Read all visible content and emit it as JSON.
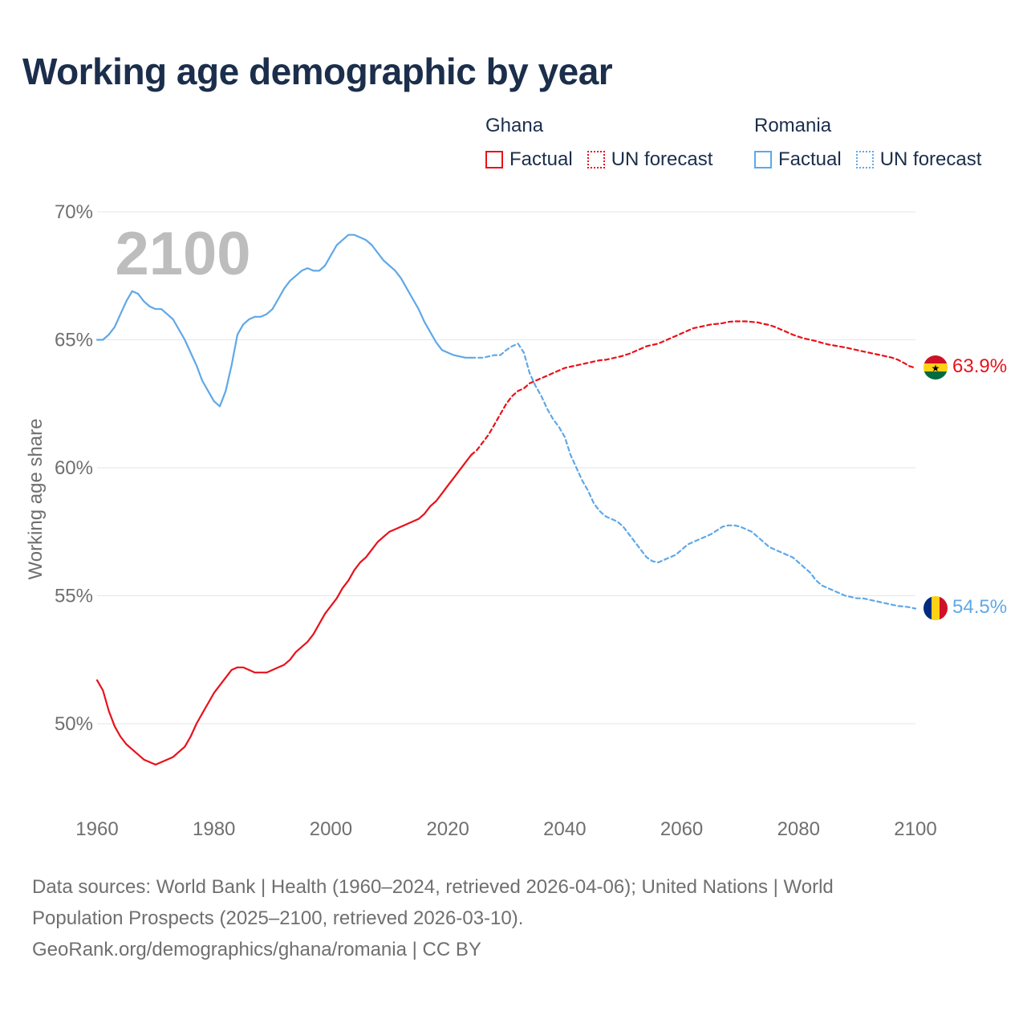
{
  "title": "Working age demographic by year",
  "legend": {
    "groups": [
      {
        "name": "Ghana",
        "factual_label": "Factual",
        "forecast_label": "UN forecast",
        "color": "#e8111a"
      },
      {
        "name": "Romania",
        "factual_label": "Factual",
        "forecast_label": "UN forecast",
        "color": "#5fa8e8"
      }
    ]
  },
  "footer": {
    "line1": "Data sources: World Bank | Health (1960–2024, retrieved 2026-04-06); United Nations | World",
    "line2": "Population Prospects (2025–2100, retrieved 2026-03-10).",
    "line3": "GeoRank.org/demographics/ghana/romania | CC BY"
  },
  "chart_data": {
    "type": "line",
    "title": "Working age demographic by year",
    "ylabel": "Working age share",
    "xlabel": "",
    "year_watermark": "2100",
    "xlim": [
      1960,
      2100
    ],
    "ylim": [
      46.5,
      70
    ],
    "x_ticks": [
      1960,
      1980,
      2000,
      2020,
      2040,
      2060,
      2080,
      2100
    ],
    "y_ticks": [
      50,
      55,
      60,
      65,
      70
    ],
    "y_tick_labels": [
      "50%",
      "55%",
      "60%",
      "65%",
      "70%"
    ],
    "grid": true,
    "series": [
      {
        "name": "Ghana",
        "color": "#e8111a",
        "end_label": "63.9%",
        "flag": "ghana",
        "factual": {
          "x": [
            1960,
            1961,
            1962,
            1963,
            1964,
            1965,
            1966,
            1967,
            1968,
            1969,
            1970,
            1971,
            1972,
            1973,
            1974,
            1975,
            1976,
            1977,
            1978,
            1979,
            1980,
            1981,
            1982,
            1983,
            1984,
            1985,
            1986,
            1987,
            1988,
            1989,
            1990,
            1991,
            1992,
            1993,
            1994,
            1995,
            1996,
            1997,
            1998,
            1999,
            2000,
            2001,
            2002,
            2003,
            2004,
            2005,
            2006,
            2007,
            2008,
            2009,
            2010,
            2011,
            2012,
            2013,
            2014,
            2015,
            2016,
            2017,
            2018,
            2019,
            2020,
            2021,
            2022,
            2023,
            2024
          ],
          "y": [
            51.7,
            51.3,
            50.5,
            49.9,
            49.5,
            49.2,
            49.0,
            48.8,
            48.6,
            48.5,
            48.4,
            48.5,
            48.6,
            48.7,
            48.9,
            49.1,
            49.5,
            50.0,
            50.4,
            50.8,
            51.2,
            51.5,
            51.8,
            52.1,
            52.2,
            52.2,
            52.1,
            52.0,
            52.0,
            52.0,
            52.1,
            52.2,
            52.3,
            52.5,
            52.8,
            53.0,
            53.2,
            53.5,
            53.9,
            54.3,
            54.6,
            54.9,
            55.3,
            55.6,
            56.0,
            56.3,
            56.5,
            56.8,
            57.1,
            57.3,
            57.5,
            57.6,
            57.7,
            57.8,
            57.9,
            58.0,
            58.2,
            58.5,
            58.7,
            59.0,
            59.3,
            59.6,
            59.9,
            60.2,
            60.5
          ]
        },
        "forecast": {
          "x": [
            2024,
            2025,
            2026,
            2027,
            2028,
            2029,
            2030,
            2031,
            2032,
            2033,
            2034,
            2035,
            2036,
            2037,
            2038,
            2039,
            2040,
            2041,
            2042,
            2043,
            2044,
            2045,
            2046,
            2047,
            2048,
            2049,
            2050,
            2051,
            2052,
            2053,
            2054,
            2055,
            2056,
            2057,
            2058,
            2059,
            2060,
            2061,
            2062,
            2063,
            2064,
            2065,
            2066,
            2067,
            2068,
            2069,
            2070,
            2071,
            2072,
            2073,
            2074,
            2075,
            2076,
            2077,
            2078,
            2079,
            2080,
            2081,
            2082,
            2083,
            2084,
            2085,
            2086,
            2087,
            2088,
            2089,
            2090,
            2091,
            2092,
            2093,
            2094,
            2095,
            2096,
            2097,
            2098,
            2099,
            2100
          ],
          "y": [
            60.5,
            60.7,
            61.0,
            61.3,
            61.7,
            62.1,
            62.5,
            62.8,
            63.0,
            63.1,
            63.3,
            63.4,
            63.5,
            63.6,
            63.7,
            63.8,
            63.9,
            63.95,
            64.0,
            64.05,
            64.1,
            64.15,
            64.2,
            64.22,
            64.27,
            64.32,
            64.38,
            64.45,
            64.55,
            64.65,
            64.75,
            64.8,
            64.85,
            64.95,
            65.05,
            65.15,
            65.25,
            65.35,
            65.45,
            65.5,
            65.55,
            65.6,
            65.62,
            65.65,
            65.7,
            65.72,
            65.72,
            65.72,
            65.7,
            65.68,
            65.62,
            65.58,
            65.5,
            65.4,
            65.3,
            65.2,
            65.12,
            65.05,
            65.0,
            64.95,
            64.88,
            64.82,
            64.78,
            64.74,
            64.7,
            64.65,
            64.6,
            64.55,
            64.5,
            64.45,
            64.4,
            64.35,
            64.3,
            64.22,
            64.1,
            63.97,
            63.9
          ]
        }
      },
      {
        "name": "Romania",
        "color": "#5fa8e8",
        "end_label": "54.5%",
        "flag": "romania",
        "factual": {
          "x": [
            1960,
            1961,
            1962,
            1963,
            1964,
            1965,
            1966,
            1967,
            1968,
            1969,
            1970,
            1971,
            1972,
            1973,
            1974,
            1975,
            1976,
            1977,
            1978,
            1979,
            1980,
            1981,
            1982,
            1983,
            1984,
            1985,
            1986,
            1987,
            1988,
            1989,
            1990,
            1991,
            1992,
            1993,
            1994,
            1995,
            1996,
            1997,
            1998,
            1999,
            2000,
            2001,
            2002,
            2003,
            2004,
            2005,
            2006,
            2007,
            2008,
            2009,
            2010,
            2011,
            2012,
            2013,
            2014,
            2015,
            2016,
            2017,
            2018,
            2019,
            2020,
            2021,
            2022,
            2023,
            2024
          ],
          "y": [
            65.0,
            65.0,
            65.2,
            65.5,
            66.0,
            66.5,
            66.9,
            66.8,
            66.5,
            66.3,
            66.2,
            66.2,
            66.0,
            65.8,
            65.4,
            65.0,
            64.5,
            64.0,
            63.4,
            63.0,
            62.6,
            62.4,
            63.0,
            64.0,
            65.2,
            65.6,
            65.8,
            65.9,
            65.9,
            66.0,
            66.2,
            66.6,
            67.0,
            67.3,
            67.5,
            67.7,
            67.8,
            67.7,
            67.7,
            67.9,
            68.3,
            68.7,
            68.9,
            69.1,
            69.1,
            69.0,
            68.9,
            68.7,
            68.4,
            68.1,
            67.9,
            67.7,
            67.4,
            67.0,
            66.6,
            66.2,
            65.7,
            65.3,
            64.9,
            64.6,
            64.5,
            64.4,
            64.35,
            64.3,
            64.3
          ]
        },
        "forecast": {
          "x": [
            2024,
            2025,
            2026,
            2027,
            2028,
            2029,
            2030,
            2031,
            2032,
            2033,
            2034,
            2035,
            2036,
            2037,
            2038,
            2039,
            2040,
            2041,
            2042,
            2043,
            2044,
            2045,
            2046,
            2047,
            2048,
            2049,
            2050,
            2051,
            2052,
            2053,
            2054,
            2055,
            2056,
            2057,
            2058,
            2059,
            2060,
            2061,
            2062,
            2063,
            2064,
            2065,
            2066,
            2067,
            2068,
            2069,
            2070,
            2071,
            2072,
            2073,
            2074,
            2075,
            2076,
            2077,
            2078,
            2079,
            2080,
            2081,
            2082,
            2083,
            2084,
            2085,
            2086,
            2087,
            2088,
            2089,
            2090,
            2091,
            2092,
            2093,
            2094,
            2095,
            2096,
            2097,
            2098,
            2099,
            2100
          ],
          "y": [
            64.3,
            64.3,
            64.3,
            64.35,
            64.4,
            64.4,
            64.6,
            64.75,
            64.85,
            64.5,
            63.7,
            63.2,
            62.8,
            62.3,
            61.9,
            61.6,
            61.2,
            60.5,
            60.0,
            59.5,
            59.1,
            58.6,
            58.3,
            58.1,
            58.0,
            57.9,
            57.7,
            57.4,
            57.1,
            56.8,
            56.5,
            56.35,
            56.3,
            56.4,
            56.5,
            56.6,
            56.8,
            57.0,
            57.1,
            57.2,
            57.3,
            57.4,
            57.55,
            57.7,
            57.75,
            57.75,
            57.7,
            57.6,
            57.5,
            57.3,
            57.1,
            56.9,
            56.8,
            56.7,
            56.6,
            56.5,
            56.3,
            56.1,
            55.9,
            55.6,
            55.4,
            55.3,
            55.2,
            55.1,
            55.0,
            54.95,
            54.9,
            54.9,
            54.85,
            54.8,
            54.75,
            54.7,
            54.65,
            54.6,
            54.58,
            54.55,
            54.5
          ]
        }
      }
    ]
  }
}
